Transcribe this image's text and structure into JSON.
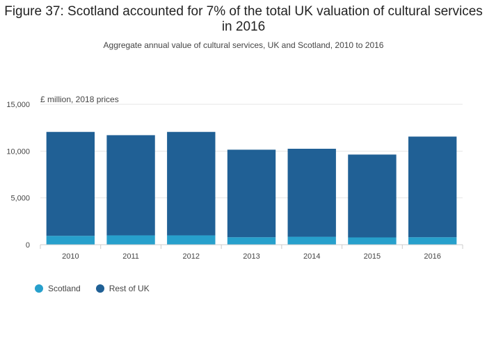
{
  "header": {
    "title": "Figure 37: Scotland accounted for 7% of the total UK valuation of cultural services in 2016",
    "subtitle": "Aggregate annual value of cultural services, UK and Scotland, 2010 to 2016"
  },
  "colors": {
    "scotland": "#27a0cc",
    "rest_of_uk": "#206095",
    "grid": "#e5e5e5",
    "axis": "#cccccc"
  },
  "chart_data": {
    "type": "bar",
    "stacked": true,
    "title": "Figure 37: Scotland accounted for 7% of the total UK valuation of cultural services in 2016",
    "subtitle": "Aggregate annual value of cultural services, UK and Scotland, 2010 to 2016",
    "ylabel": "£ million, 2018 prices",
    "xlabel": "",
    "ylim": [
      0,
      15000
    ],
    "yticks": [
      0,
      5000,
      10000,
      15000
    ],
    "ytick_labels": [
      "0",
      "5,000",
      "10,000",
      "15,000"
    ],
    "categories": [
      "2010",
      "2011",
      "2012",
      "2013",
      "2014",
      "2015",
      "2016"
    ],
    "series": [
      {
        "name": "Scotland",
        "values": [
          950,
          1000,
          1000,
          800,
          850,
          780,
          800
        ]
      },
      {
        "name": "Rest of UK",
        "values": [
          11100,
          10700,
          11050,
          9350,
          9400,
          8850,
          10750
        ]
      }
    ],
    "legend_position": "bottom-left",
    "grid": true
  }
}
